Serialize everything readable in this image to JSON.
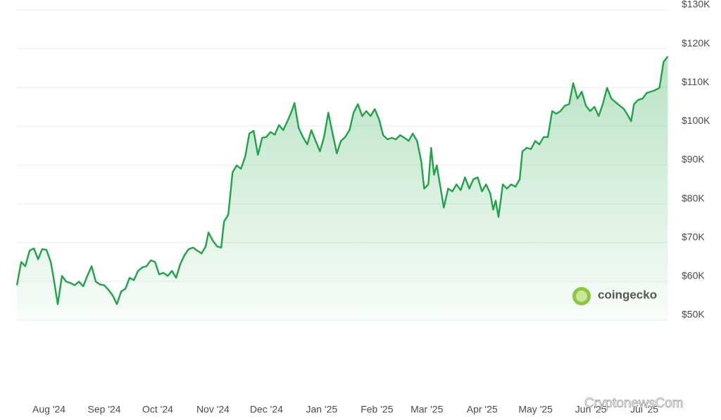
{
  "chart_data": {
    "type": "line",
    "color": "#1ea446",
    "watermark": "coingecko",
    "source_watermark": "CryptonewsCom",
    "xlim": [
      0,
      365
    ],
    "xticks": [
      {
        "value": 18,
        "label": "Aug '24"
      },
      {
        "value": 49,
        "label": "Sep '24"
      },
      {
        "value": 79,
        "label": "Oct '24"
      },
      {
        "value": 110,
        "label": "Nov '24"
      },
      {
        "value": 140,
        "label": "Dec '24"
      },
      {
        "value": 171,
        "label": "Jan '25"
      },
      {
        "value": 202,
        "label": "Feb '25"
      },
      {
        "value": 230,
        "label": "Mar '25"
      },
      {
        "value": 261,
        "label": "Apr '25"
      },
      {
        "value": 291,
        "label": "May '25"
      },
      {
        "value": 322,
        "label": "Jun '25"
      },
      {
        "value": 352,
        "label": "Jul '25"
      }
    ],
    "ylim": [
      50000,
      130000
    ],
    "yticks": [
      {
        "value": 50000,
        "label": "$50K"
      },
      {
        "value": 60000,
        "label": "$60K"
      },
      {
        "value": 70000,
        "label": "$70K"
      },
      {
        "value": 80000,
        "label": "$80K"
      },
      {
        "value": 90000,
        "label": "$90K"
      },
      {
        "value": 100000,
        "label": "$100K"
      },
      {
        "value": 110000,
        "label": "$110K"
      },
      {
        "value": 120000,
        "label": "$120K"
      },
      {
        "value": 130000,
        "label": "$130K"
      }
    ],
    "grid": true,
    "x": [
      0,
      2.4,
      4.7,
      7.1,
      9.5,
      11.9,
      14.2,
      16.6,
      19.0,
      20.6,
      22.9,
      25.3,
      27.7,
      30.0,
      32.4,
      34.8,
      37.2,
      39.5,
      41.9,
      44.3,
      46.6,
      49.0,
      51.4,
      53.8,
      56.1,
      58.5,
      60.9,
      63.2,
      65.6,
      68.0,
      70.4,
      72.7,
      75.1,
      77.5,
      79.8,
      82.2,
      84.6,
      87.0,
      89.3,
      91.7,
      94.1,
      96.4,
      98.8,
      101.2,
      103.6,
      105.9,
      107.5,
      109.9,
      112.3,
      114.6,
      116.2,
      118.6,
      121.0,
      123.3,
      125.7,
      128.1,
      130.4,
      132.8,
      135.2,
      137.6,
      139.9,
      142.3,
      144.7,
      147.0,
      149.4,
      151.8,
      154.2,
      155.7,
      158.1,
      160.5,
      162.9,
      165.2,
      167.6,
      170.0,
      172.3,
      174.7,
      177.1,
      179.5,
      181.8,
      184.2,
      186.6,
      188.9,
      191.3,
      193.7,
      196.0,
      198.4,
      200.8,
      203.2,
      205.5,
      207.9,
      210.3,
      212.6,
      215.0,
      217.4,
      219.8,
      222.1,
      224.5,
      226.9,
      228.5,
      230.8,
      232.4,
      234.0,
      235.6,
      237.2,
      239.5,
      241.9,
      244.3,
      246.6,
      249.0,
      251.4,
      253.8,
      256.1,
      258.5,
      260.9,
      263.2,
      265.6,
      267.2,
      268.6,
      270.2,
      272.6,
      274.9,
      277.3,
      279.7,
      282.1,
      283.6,
      286.0,
      288.4,
      290.8,
      293.1,
      295.5,
      297.9,
      300.3,
      302.6,
      305.0,
      307.4,
      309.8,
      312.1,
      314.5,
      316.9,
      319.2,
      321.6,
      324.0,
      326.4,
      328.7,
      331.1,
      333.5,
      335.8,
      338.2,
      340.6,
      343.0,
      344.6,
      346.2,
      348.6,
      351.0,
      353.4,
      355.7,
      358.1,
      360.5,
      362.8,
      365.2
    ],
    "values": [
      59000,
      65000,
      63900,
      67900,
      68500,
      65700,
      68300,
      68100,
      65000,
      60900,
      54100,
      61400,
      59900,
      59600,
      59000,
      59900,
      58700,
      61400,
      63900,
      59900,
      59200,
      59000,
      57800,
      56300,
      54100,
      57400,
      58100,
      60900,
      60300,
      62700,
      63600,
      63900,
      65400,
      65000,
      61800,
      62200,
      61400,
      62700,
      60900,
      64500,
      66800,
      68300,
      68700,
      67900,
      67200,
      69000,
      72600,
      70500,
      69000,
      68700,
      75400,
      77200,
      88100,
      89900,
      89000,
      92200,
      98100,
      98800,
      92600,
      97000,
      97200,
      98500,
      97800,
      100300,
      99000,
      101300,
      103900,
      106000,
      99500,
      97200,
      95300,
      99000,
      96200,
      93500,
      97200,
      103500,
      98100,
      93000,
      96200,
      97200,
      99000,
      103500,
      105700,
      102600,
      103900,
      102600,
      104400,
      101700,
      97700,
      96600,
      97000,
      96600,
      97700,
      97000,
      96200,
      98100,
      96200,
      90800,
      83900,
      85000,
      94400,
      87500,
      89900,
      85400,
      79000,
      83900,
      83200,
      85000,
      83500,
      86800,
      83900,
      86300,
      86800,
      83200,
      85000,
      82600,
      78500,
      80800,
      76600,
      85000,
      83900,
      85000,
      84400,
      86300,
      93500,
      94400,
      94100,
      96200,
      95300,
      97200,
      97200,
      103900,
      103200,
      103900,
      105300,
      105700,
      111100,
      107100,
      108900,
      105300,
      103900,
      105000,
      102600,
      105700,
      109900,
      107100,
      106200,
      105300,
      104400,
      102600,
      101300,
      105700,
      106800,
      107100,
      108600,
      108900,
      109300,
      109900,
      116600,
      118000
    ]
  }
}
